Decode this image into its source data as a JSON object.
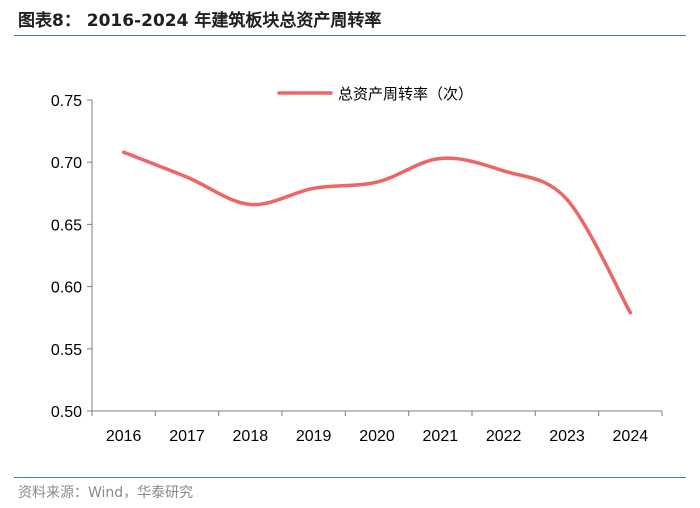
{
  "figure": {
    "title": "图表8： 2016-2024 年建筑板块总资产周转率",
    "source": "资料来源：Wind，华泰研究"
  },
  "chart_data": {
    "type": "line",
    "title": "",
    "xlabel": "",
    "ylabel": "",
    "categories": [
      "2016",
      "2017",
      "2018",
      "2019",
      "2020",
      "2021",
      "2022",
      "2023",
      "2024"
    ],
    "series": [
      {
        "name": "总资产周转率（次）",
        "color": "#f06464",
        "values": [
          0.708,
          0.688,
          0.666,
          0.679,
          0.684,
          0.703,
          0.693,
          0.67,
          0.579
        ]
      }
    ],
    "ylim": [
      0.5,
      0.75
    ],
    "yticks": [
      "0.50",
      "0.55",
      "0.60",
      "0.65",
      "0.70",
      "0.75"
    ],
    "grid": false,
    "legend_position": "top"
  }
}
